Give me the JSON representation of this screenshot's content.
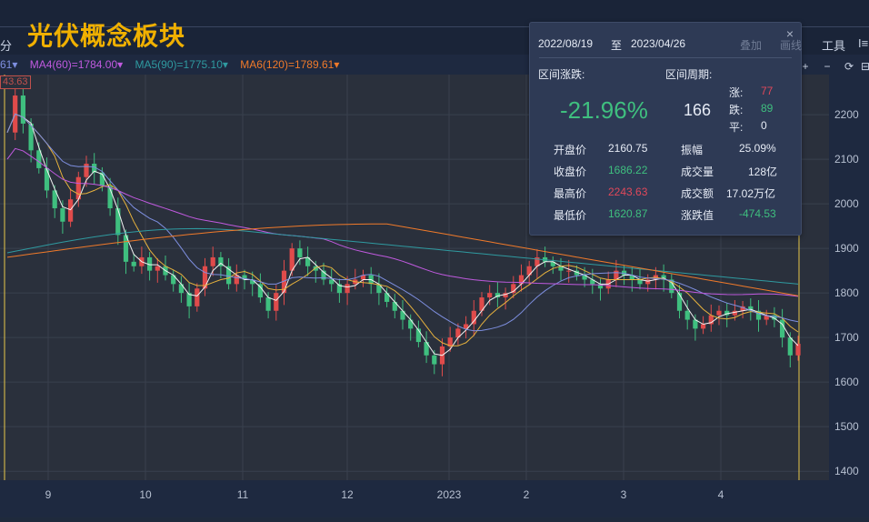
{
  "header": {
    "title": "光伏概念板块",
    "period_label": "分",
    "toolbar_tools": "工具",
    "toolbar_last": "I≡"
  },
  "ma_bar": {
    "ma3": "61▾",
    "ma4": "MA4(60)=1784.00▾",
    "ma5": "MA5(90)=1775.10▾",
    "ma6": "MA6(120)=1789.61▾",
    "price_tag": "43.63"
  },
  "chart_controls": {
    "plus": "+",
    "minus": "−",
    "reset": "⟳",
    "collapse": "⊟"
  },
  "tooltip": {
    "date_start": "2022/08/19",
    "date_to": "至",
    "date_end": "2023/04/26",
    "btn_add": "叠加",
    "btn_draw": "画线",
    "close": "×",
    "range_change_label": "区间涨跌:",
    "range_period_label": "区间周期:",
    "change_pct": "-21.96%",
    "period_days": "166",
    "up_label": "涨:",
    "up_value": "77",
    "down_label": "跌:",
    "down_value": "89",
    "flat_label": "平:",
    "flat_value": "0",
    "open_label": "开盘价",
    "open_value": "2160.75",
    "amp_label": "振幅",
    "amp_value": "25.09%",
    "close_label": "收盘价",
    "close_value": "1686.22",
    "vol_label": "成交量",
    "vol_value": "128亿",
    "high_label": "最高价",
    "high_value": "2243.63",
    "amount_label": "成交额",
    "amount_value": "17.02万亿",
    "low_label": "最低价",
    "low_value": "1620.87",
    "chg_label": "涨跌值",
    "chg_value": "-474.53"
  },
  "colors": {
    "up": "#e04b4b",
    "down": "#3fbf7f",
    "ma1": "#f2f2f2",
    "ma2": "#e7b23d",
    "ma3": "#7e8fe0",
    "ma4": "#c05adf",
    "ma5": "#2f9aa0",
    "ma6": "#f07a2a",
    "title": "#f0b000"
  },
  "chart_data": {
    "type": "candlestick",
    "title": "光伏概念板块",
    "ylim": [
      1380,
      2290
    ],
    "y_ticks": [
      1400,
      1500,
      1600,
      1700,
      1800,
      1900,
      2000,
      2100,
      2200
    ],
    "x_ticks": [
      "9",
      "10",
      "11",
      "12",
      "2023",
      "2",
      "3",
      "4"
    ],
    "date_range": [
      "2022/08/19",
      "2023/04/26"
    ],
    "open": 2160.75,
    "close": 1686.22,
    "high": 2243.63,
    "low": 1620.87,
    "price_path": [
      2160,
      2243,
      2180,
      2120,
      2080,
      2030,
      1990,
      1960,
      2010,
      2060,
      2090,
      2070,
      2040,
      1990,
      1930,
      1870,
      1860,
      1880,
      1850,
      1860,
      1840,
      1820,
      1800,
      1770,
      1810,
      1860,
      1880,
      1860,
      1820,
      1840,
      1830,
      1820,
      1790,
      1760,
      1800,
      1850,
      1900,
      1880,
      1860,
      1850,
      1830,
      1820,
      1800,
      1820,
      1830,
      1840,
      1820,
      1800,
      1780,
      1760,
      1740,
      1720,
      1690,
      1660,
      1640,
      1680,
      1700,
      1720,
      1730,
      1760,
      1790,
      1800,
      1790,
      1800,
      1820,
      1840,
      1860,
      1880,
      1870,
      1860,
      1850,
      1850,
      1840,
      1830,
      1820,
      1810,
      1830,
      1850,
      1840,
      1830,
      1820,
      1830,
      1840,
      1830,
      1800,
      1760,
      1740,
      1720,
      1730,
      1750,
      1760,
      1750,
      1760,
      1770,
      1760,
      1740,
      1750,
      1740,
      1700,
      1660,
      1686
    ],
    "ma_levels": {
      "MA4(60)": 1784.0,
      "MA5(90)": 1775.1,
      "MA6(120)": 1789.61
    }
  }
}
